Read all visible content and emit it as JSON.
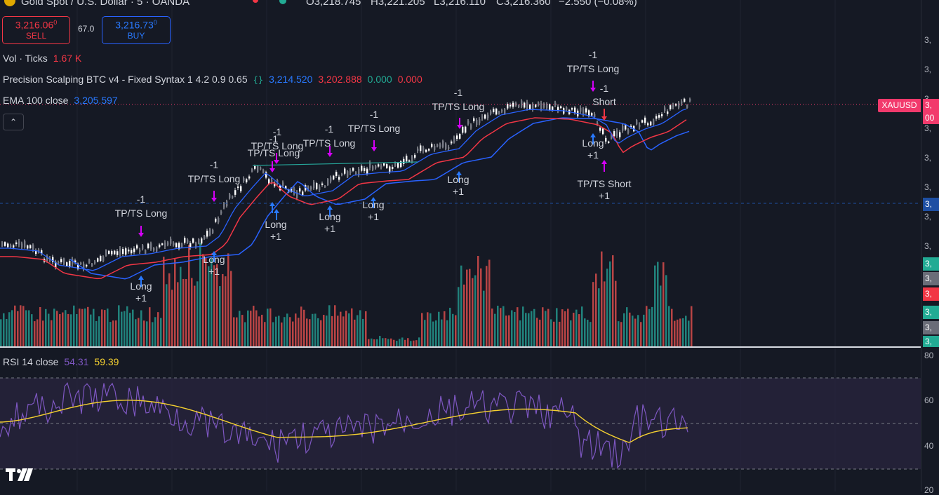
{
  "header": {
    "symbol_title": "Gold Spot / U.S. Dollar · 5 · OANDA",
    "ohlc": {
      "open": "O3,218.745",
      "high": "H3,221.205",
      "low": "L3,216.110",
      "close": "C3,216.360",
      "change": "−2.550 (−0.08%)"
    }
  },
  "trade": {
    "sell_price": "3,216.06",
    "sell_price_sup": "0",
    "sell_label": "SELL",
    "spread": "67.0",
    "buy_price": "3,216.73",
    "buy_price_sup": "0",
    "buy_label": "BUY"
  },
  "legend": {
    "vol_label": "Vol · Ticks",
    "vol_value": "1.67 K",
    "indicator_name": "Precision Scalping BTC v4 - Fixed Syntax 1 4.2 0.9 0.65",
    "indicator_v1": "3,214.520",
    "indicator_v2": "3,202.888",
    "indicator_v3": "0.000",
    "indicator_v4": "0.000",
    "ema_label": "EMA 100 close",
    "ema_value": "3,205.597",
    "collapse_icon": "chevron-up-icon",
    "rsi_label": "RSI 14 close",
    "rsi_value": "54.31",
    "rsi_ma_value": "59.39"
  },
  "symbol_tag": "XAUUSD",
  "price_axis": {
    "ticks": [
      "3,",
      "3,",
      "3,",
      "3,",
      "3,",
      "3,",
      "3,",
      "3,",
      "3,"
    ],
    "badges": [
      {
        "text": "3,",
        "color": "#f23a6c"
      },
      {
        "text": "00",
        "color": "#f23a6c"
      },
      {
        "text": "3,",
        "color": "#1e4fa3"
      },
      {
        "text": "3,",
        "color": "#22ab94"
      },
      {
        "text": "3,",
        "color": "#6a6d78"
      },
      {
        "text": "3,",
        "color": "#f23645"
      },
      {
        "text": "3,",
        "color": "#22ab94"
      },
      {
        "text": "3,",
        "color": "#6a6d78"
      },
      {
        "text": "3,",
        "color": "#22ab94"
      }
    ]
  },
  "rsi_axis": {
    "ticks": [
      "80",
      "60",
      "40",
      "20"
    ]
  },
  "signals": {
    "long_labels": [
      "Long",
      "+1",
      "Long",
      "+1",
      "Long",
      "+1",
      "Long",
      "+1",
      "Long",
      "+1",
      "Long",
      "+1",
      "Long",
      "+1"
    ],
    "tp_long_labels": [
      "-1",
      "TP/TS Long",
      "-1",
      "TP/TS Long",
      "-1",
      "TP/TS Long",
      "-1",
      "TP/TS Long",
      "-1",
      "TP/TS Long",
      "-1",
      "TP/TS Long",
      "-1",
      "TP/TS Long",
      "-1",
      "TP/TS Long"
    ],
    "short_labels": [
      "-1",
      "Short",
      "TP/TS Short",
      "+1"
    ]
  },
  "colors": {
    "background": "#151924",
    "candle_up": "#ffffff",
    "candle_down": "#ffffff",
    "ema_fast": "#2962ff",
    "ema_slow": "#f23645",
    "vol_up": "#26a69a",
    "vol_down": "#ef5350",
    "rsi_line": "#7e57c2",
    "rsi_ma": "#f5d130",
    "signal_long": "#2979ff",
    "signal_exit": "#d500f9"
  },
  "logo_text": "TV"
}
